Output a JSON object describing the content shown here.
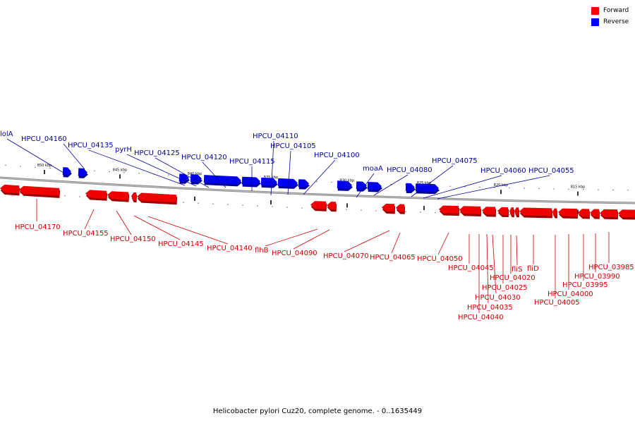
{
  "caption": "Helicobacter pylori Cuz20, complete genome. - 0..1635449",
  "legend": [
    {
      "label": "Forward",
      "color": "#ff0000"
    },
    {
      "label": "Reverse",
      "color": "#0000ff"
    }
  ],
  "colors": {
    "forward": "#ee0000",
    "reverse": "#0000ee",
    "forward_label": "#cc0000",
    "reverse_label": "#000099",
    "backbone": "#888888"
  },
  "ticks": [
    "850 kbp",
    "845 kbp",
    "840 kbp",
    "835 kbp",
    "830 kbp",
    "825 kbp",
    "820 kbp",
    "815 kbp"
  ],
  "forward_labels": [
    "HPCU_04170",
    "HPCU_04155",
    "HPCU_04150",
    "HPCU_04145",
    "HPCU_04140",
    "flhB",
    "HPCU_04090",
    "HPCU_04070",
    "HPCU_04065",
    "HPCU_04050",
    "HPCU_04045",
    "HPCU_04040",
    "HPCU_04035",
    "HPCU_04030",
    "HPCU_04025",
    "HPCU_04020",
    "fliS",
    "fliD",
    "HPCU_04005",
    "HPCU_04000",
    "HPCU_03995",
    "HPCU_03990",
    "HPCU_03985"
  ],
  "reverse_labels": [
    "lolA",
    "HPCU_04160",
    "HPCU_04135",
    "pyrH",
    "HPCU_04125",
    "HPCU_04120",
    "HPCU_04115",
    "HPCU_04110",
    "HPCU_04105",
    "HPCU_04100",
    "moaA",
    "HPCU_04080",
    "HPCU_04075",
    "HPCU_04060",
    "HPCU_04055"
  ]
}
